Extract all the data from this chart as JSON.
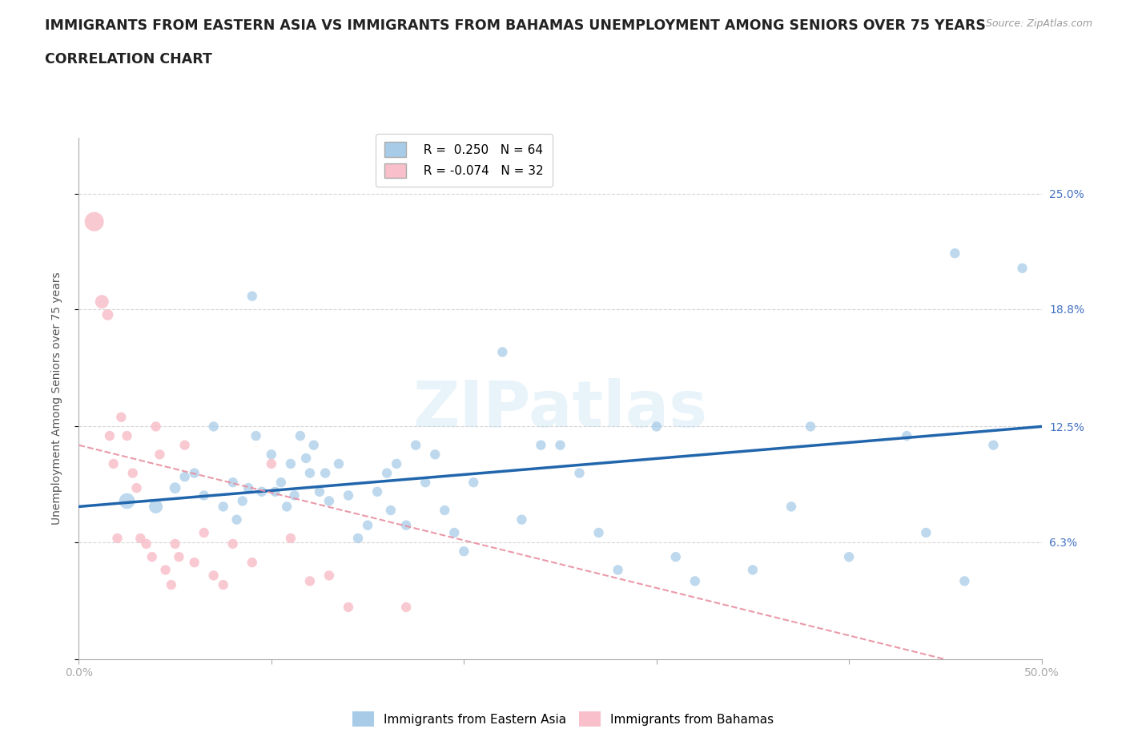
{
  "title_line1": "IMMIGRANTS FROM EASTERN ASIA VS IMMIGRANTS FROM BAHAMAS UNEMPLOYMENT AMONG SENIORS OVER 75 YEARS",
  "title_line2": "CORRELATION CHART",
  "source_text": "Source: ZipAtlas.com",
  "ylabel": "Unemployment Among Seniors over 75 years",
  "x_min": 0.0,
  "x_max": 0.5,
  "y_min": 0.0,
  "y_max": 0.28,
  "x_ticks": [
    0.0,
    0.1,
    0.2,
    0.3,
    0.4,
    0.5
  ],
  "x_tick_labels": [
    "0.0%",
    "",
    "",
    "",
    "",
    "50.0%"
  ],
  "y_tick_positions": [
    0.0,
    0.063,
    0.125,
    0.188,
    0.25
  ],
  "y_tick_labels": [
    "",
    "6.3%",
    "12.5%",
    "18.8%",
    "25.0%"
  ],
  "legend_r_blue": " 0.250",
  "legend_n_blue": "64",
  "legend_r_pink": "-0.074",
  "legend_n_pink": "32",
  "color_blue": "#a8cce8",
  "color_blue_line": "#2166ac",
  "color_pink": "#f9c0cb",
  "color_pink_line": "#e88fa0",
  "watermark": "ZIPatlas",
  "blue_scatter_x": [
    0.025,
    0.04,
    0.05,
    0.055,
    0.06,
    0.065,
    0.07,
    0.075,
    0.08,
    0.082,
    0.085,
    0.088,
    0.09,
    0.092,
    0.095,
    0.1,
    0.102,
    0.105,
    0.108,
    0.11,
    0.112,
    0.115,
    0.118,
    0.12,
    0.122,
    0.125,
    0.128,
    0.13,
    0.135,
    0.14,
    0.145,
    0.15,
    0.155,
    0.16,
    0.162,
    0.165,
    0.17,
    0.175,
    0.18,
    0.185,
    0.19,
    0.195,
    0.2,
    0.205,
    0.22,
    0.23,
    0.24,
    0.25,
    0.26,
    0.27,
    0.28,
    0.3,
    0.31,
    0.32,
    0.35,
    0.37,
    0.38,
    0.4,
    0.43,
    0.44,
    0.455,
    0.46,
    0.475,
    0.49
  ],
  "blue_scatter_y": [
    0.085,
    0.082,
    0.092,
    0.098,
    0.1,
    0.088,
    0.125,
    0.082,
    0.095,
    0.075,
    0.085,
    0.092,
    0.195,
    0.12,
    0.09,
    0.11,
    0.09,
    0.095,
    0.082,
    0.105,
    0.088,
    0.12,
    0.108,
    0.1,
    0.115,
    0.09,
    0.1,
    0.085,
    0.105,
    0.088,
    0.065,
    0.072,
    0.09,
    0.1,
    0.08,
    0.105,
    0.072,
    0.115,
    0.095,
    0.11,
    0.08,
    0.068,
    0.058,
    0.095,
    0.165,
    0.075,
    0.115,
    0.115,
    0.1,
    0.068,
    0.048,
    0.125,
    0.055,
    0.042,
    0.048,
    0.082,
    0.125,
    0.055,
    0.12,
    0.068,
    0.218,
    0.042,
    0.115,
    0.21
  ],
  "blue_scatter_size": [
    200,
    150,
    100,
    80,
    80,
    80,
    80,
    80,
    80,
    80,
    80,
    80,
    80,
    80,
    80,
    80,
    80,
    80,
    80,
    80,
    80,
    80,
    80,
    80,
    80,
    80,
    80,
    80,
    80,
    80,
    80,
    80,
    80,
    80,
    80,
    80,
    80,
    80,
    80,
    80,
    80,
    80,
    80,
    80,
    80,
    80,
    80,
    80,
    80,
    80,
    80,
    80,
    80,
    80,
    80,
    80,
    80,
    80,
    80,
    80,
    80,
    80,
    80,
    80
  ],
  "pink_scatter_x": [
    0.008,
    0.012,
    0.015,
    0.016,
    0.018,
    0.02,
    0.022,
    0.025,
    0.028,
    0.03,
    0.032,
    0.035,
    0.038,
    0.04,
    0.042,
    0.045,
    0.048,
    0.05,
    0.052,
    0.055,
    0.06,
    0.065,
    0.07,
    0.075,
    0.08,
    0.09,
    0.1,
    0.11,
    0.12,
    0.13,
    0.14,
    0.17
  ],
  "pink_scatter_y": [
    0.235,
    0.192,
    0.185,
    0.12,
    0.105,
    0.065,
    0.13,
    0.12,
    0.1,
    0.092,
    0.065,
    0.062,
    0.055,
    0.125,
    0.11,
    0.048,
    0.04,
    0.062,
    0.055,
    0.115,
    0.052,
    0.068,
    0.045,
    0.04,
    0.062,
    0.052,
    0.105,
    0.065,
    0.042,
    0.045,
    0.028,
    0.028
  ],
  "pink_scatter_size": [
    300,
    150,
    100,
    80,
    80,
    80,
    80,
    80,
    80,
    80,
    80,
    80,
    80,
    80,
    80,
    80,
    80,
    80,
    80,
    80,
    80,
    80,
    80,
    80,
    80,
    80,
    80,
    80,
    80,
    80,
    80,
    80
  ],
  "blue_trend_x0": 0.0,
  "blue_trend_x1": 0.5,
  "blue_trend_y0": 0.082,
  "blue_trend_y1": 0.125,
  "pink_trend_x0": 0.0,
  "pink_trend_x1": 0.45,
  "pink_trend_y0": 0.115,
  "pink_trend_y1": 0.0,
  "grid_color": "#cccccc",
  "background_color": "#ffffff",
  "title_fontsize": 12.5,
  "axis_label_fontsize": 10,
  "tick_fontsize": 10,
  "legend_fontsize": 11,
  "right_tick_color": "#4472C4"
}
